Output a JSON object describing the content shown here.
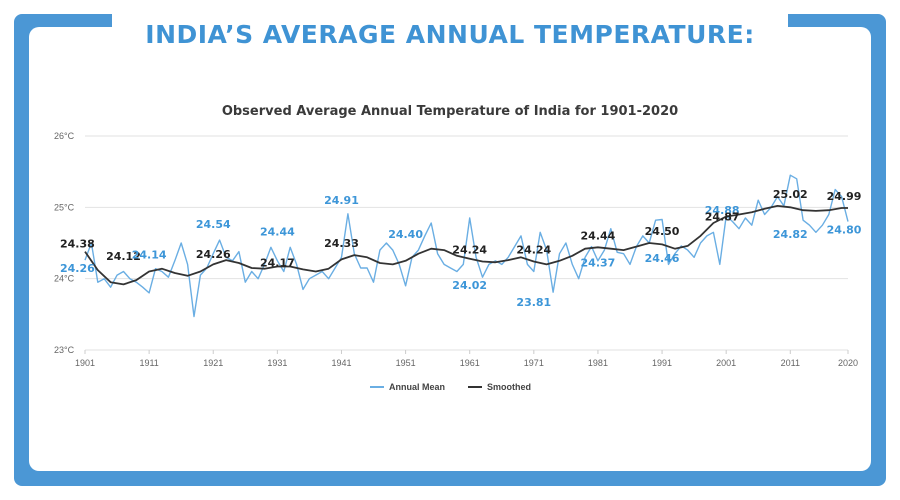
{
  "page": {
    "banner_title": "INDIA’S AVERAGE ANNUAL TEMPERATURE:"
  },
  "colors": {
    "frame": "#4b97d5",
    "banner": "#3f93d4",
    "annual": "#6aaee3",
    "smoothed": "#333333",
    "label_blue": "#3d96d8",
    "label_dark": "#222222"
  },
  "chart_data": {
    "type": "line",
    "title": "Observed Average Annual Temperature of India for 1901-2020",
    "xlabel": "",
    "ylabel": "",
    "xlim": [
      1901,
      2020
    ],
    "ylim": [
      23,
      26
    ],
    "x_ticks": [
      "1901",
      "1911",
      "1921",
      "1931",
      "1941",
      "1951",
      "1961",
      "1971",
      "1981",
      "1991",
      "2001",
      "2011",
      "2020"
    ],
    "y_ticks": [
      "23°C",
      "24°C",
      "25°C",
      "26°C"
    ],
    "grid": "horizontal",
    "legend_position": "bottom",
    "series": [
      {
        "name": "Annual Mean",
        "color": "#6aaee3",
        "x": [
          1901,
          1902,
          1903,
          1904,
          1905,
          1906,
          1907,
          1908,
          1909,
          1910,
          1911,
          1912,
          1913,
          1914,
          1915,
          1916,
          1917,
          1918,
          1919,
          1920,
          1921,
          1922,
          1923,
          1924,
          1925,
          1926,
          1927,
          1928,
          1929,
          1930,
          1931,
          1932,
          1933,
          1934,
          1935,
          1936,
          1937,
          1938,
          1939,
          1940,
          1941,
          1942,
          1943,
          1944,
          1945,
          1946,
          1947,
          1948,
          1949,
          1950,
          1951,
          1952,
          1953,
          1954,
          1955,
          1956,
          1957,
          1958,
          1959,
          1960,
          1961,
          1962,
          1963,
          1964,
          1965,
          1966,
          1967,
          1968,
          1969,
          1970,
          1971,
          1972,
          1973,
          1974,
          1975,
          1976,
          1977,
          1978,
          1979,
          1980,
          1981,
          1982,
          1983,
          1984,
          1985,
          1986,
          1987,
          1988,
          1989,
          1990,
          1991,
          1992,
          1993,
          1994,
          1995,
          1996,
          1997,
          1998,
          1999,
          2000,
          2001,
          2002,
          2003,
          2004,
          2005,
          2006,
          2007,
          2008,
          2009,
          2010,
          2011,
          2012,
          2013,
          2014,
          2015,
          2016,
          2017,
          2018,
          2019,
          2020
        ],
        "values": [
          24.26,
          24.5,
          23.95,
          24.0,
          23.88,
          24.05,
          24.1,
          24.0,
          23.95,
          23.88,
          23.8,
          24.14,
          24.1,
          24.02,
          24.25,
          24.5,
          24.2,
          23.47,
          24.05,
          24.15,
          24.35,
          24.54,
          24.3,
          24.25,
          24.38,
          23.95,
          24.1,
          24.0,
          24.2,
          24.44,
          24.25,
          24.1,
          24.44,
          24.2,
          23.85,
          24.0,
          24.05,
          24.1,
          24.0,
          24.15,
          24.3,
          24.91,
          24.35,
          24.15,
          24.15,
          23.95,
          24.4,
          24.5,
          24.4,
          24.2,
          23.9,
          24.3,
          24.4,
          24.6,
          24.78,
          24.35,
          24.2,
          24.15,
          24.1,
          24.2,
          24.85,
          24.3,
          24.02,
          24.2,
          24.25,
          24.2,
          24.3,
          24.45,
          24.6,
          24.2,
          24.1,
          24.65,
          24.4,
          23.81,
          24.35,
          24.5,
          24.2,
          24.0,
          24.3,
          24.45,
          24.25,
          24.4,
          24.7,
          24.37,
          24.35,
          24.2,
          24.45,
          24.6,
          24.5,
          24.82,
          24.83,
          24.2,
          24.35,
          24.46,
          24.4,
          24.3,
          24.5,
          24.6,
          24.65,
          24.2,
          24.88,
          24.8,
          24.7,
          24.85,
          24.75,
          25.1,
          24.9,
          25.0,
          25.15,
          25.02,
          25.45,
          25.4,
          24.82,
          24.75,
          24.65,
          24.75,
          24.9,
          25.25,
          25.15,
          24.8
        ]
      },
      {
        "name": "Smoothed",
        "color": "#333333",
        "x": [
          1901,
          1903,
          1905,
          1907,
          1909,
          1911,
          1913,
          1915,
          1917,
          1919,
          1921,
          1923,
          1925,
          1927,
          1929,
          1931,
          1933,
          1935,
          1937,
          1939,
          1941,
          1943,
          1945,
          1947,
          1949,
          1951,
          1953,
          1955,
          1957,
          1959,
          1961,
          1963,
          1965,
          1967,
          1969,
          1971,
          1973,
          1975,
          1977,
          1979,
          1981,
          1983,
          1985,
          1987,
          1989,
          1991,
          1993,
          1995,
          1997,
          1999,
          2001,
          2003,
          2005,
          2007,
          2009,
          2011,
          2013,
          2015,
          2017,
          2019,
          2020
        ],
        "values": [
          24.38,
          24.12,
          23.95,
          23.92,
          23.98,
          24.1,
          24.14,
          24.08,
          24.04,
          24.1,
          24.2,
          24.26,
          24.22,
          24.15,
          24.14,
          24.17,
          24.17,
          24.13,
          24.1,
          24.14,
          24.27,
          24.33,
          24.3,
          24.22,
          24.2,
          24.25,
          24.35,
          24.42,
          24.4,
          24.32,
          24.28,
          24.24,
          24.23,
          24.26,
          24.3,
          24.24,
          24.2,
          24.25,
          24.32,
          24.42,
          24.44,
          24.42,
          24.4,
          24.45,
          24.5,
          24.48,
          24.42,
          24.46,
          24.6,
          24.78,
          24.87,
          24.9,
          24.93,
          24.98,
          25.02,
          25.0,
          24.96,
          24.95,
          24.96,
          24.99,
          24.99
        ]
      }
    ],
    "annotations": [
      {
        "text": "24.38",
        "x": 1901,
        "y": 24.38,
        "color": "dark"
      },
      {
        "text": "24.26",
        "x": 1901,
        "y": 24.26,
        "color": "blue"
      },
      {
        "text": "24.12",
        "x": 1907,
        "y": 24.12,
        "color": "dark"
      },
      {
        "text": "24.14",
        "x": 1911,
        "y": 24.14,
        "color": "blue"
      },
      {
        "text": "24.54",
        "x": 1921,
        "y": 24.54,
        "color": "blue"
      },
      {
        "text": "24.26",
        "x": 1921,
        "y": 24.26,
        "color": "dark"
      },
      {
        "text": "24.44",
        "x": 1931,
        "y": 24.44,
        "color": "blue"
      },
      {
        "text": "24.17",
        "x": 1931,
        "y": 24.17,
        "color": "dark"
      },
      {
        "text": "24.91",
        "x": 1941,
        "y": 24.91,
        "color": "blue"
      },
      {
        "text": "24.33",
        "x": 1941,
        "y": 24.33,
        "color": "dark"
      },
      {
        "text": "24.40",
        "x": 1951,
        "y": 24.4,
        "color": "blue"
      },
      {
        "text": "24.24",
        "x": 1961,
        "y": 24.24,
        "color": "dark"
      },
      {
        "text": "24.02",
        "x": 1961,
        "y": 24.02,
        "color": "blue"
      },
      {
        "text": "24.24",
        "x": 1971,
        "y": 24.24,
        "color": "dark"
      },
      {
        "text": "23.81",
        "x": 1971,
        "y": 23.81,
        "color": "blue"
      },
      {
        "text": "24.44",
        "x": 1981,
        "y": 24.44,
        "color": "dark"
      },
      {
        "text": "24.37",
        "x": 1981,
        "y": 24.37,
        "color": "blue"
      },
      {
        "text": "24.50",
        "x": 1991,
        "y": 24.5,
        "color": "dark"
      },
      {
        "text": "24.46",
        "x": 1991,
        "y": 24.46,
        "color": "blue"
      },
      {
        "text": "24.88",
        "x": 2001,
        "y": 24.88,
        "color": "blue"
      },
      {
        "text": "24.87",
        "x": 2001,
        "y": 24.87,
        "color": "dark"
      },
      {
        "text": "25.02",
        "x": 2011,
        "y": 25.02,
        "color": "dark"
      },
      {
        "text": "24.82",
        "x": 2011,
        "y": 24.82,
        "color": "blue"
      },
      {
        "text": "24.99",
        "x": 2020,
        "y": 24.99,
        "color": "dark"
      },
      {
        "text": "24.80",
        "x": 2020,
        "y": 24.8,
        "color": "blue"
      }
    ]
  }
}
